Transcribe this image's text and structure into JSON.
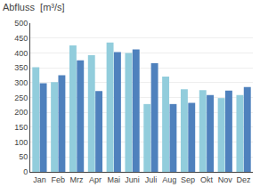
{
  "chart_data": {
    "type": "bar",
    "title": "Abfluss  [m³/s]",
    "categories": [
      "Jan",
      "Feb",
      "Mrz",
      "Apr",
      "Mai",
      "Juni",
      "Juli",
      "Aug",
      "Sep",
      "Okt",
      "Nov",
      "Dez"
    ],
    "series": [
      {
        "color": "#92CDDC",
        "values": [
          352,
          302,
          425,
          392,
          435,
          400,
          228,
          320,
          278,
          275,
          248,
          258
        ]
      },
      {
        "color": "#4F81BD",
        "values": [
          298,
          325,
          375,
          272,
          403,
          412,
          365,
          228,
          232,
          258,
          273,
          285
        ]
      }
    ],
    "ylim": [
      0,
      500
    ],
    "yticks": [
      0,
      50,
      100,
      150,
      200,
      250,
      300,
      350,
      400,
      450,
      500
    ],
    "grid": true
  }
}
